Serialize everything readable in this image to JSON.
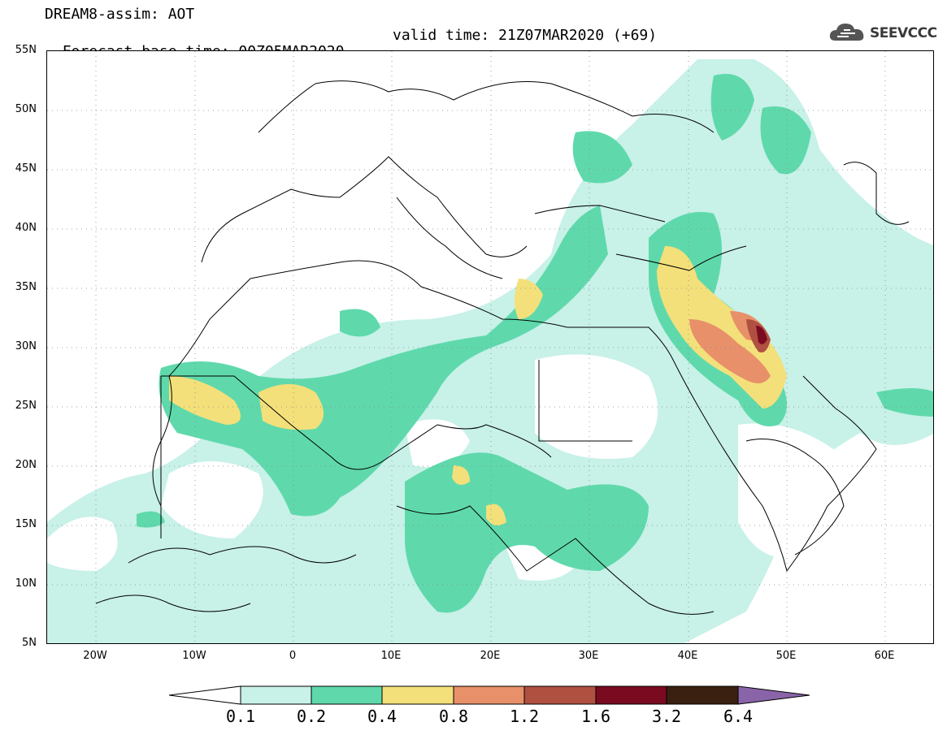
{
  "header": {
    "line1": "DREAM8-assim: AOT",
    "line2": "Forecast base time: 00Z05MAR2020",
    "valid": "valid time: 21Z07MAR2020 (+69)"
  },
  "logo": {
    "text": "SEEVCCC",
    "icon": "cloud-icon"
  },
  "map": {
    "lat_labels": [
      "55N",
      "50N",
      "45N",
      "40N",
      "35N",
      "30N",
      "25N",
      "20N",
      "15N",
      "10N",
      "5N"
    ],
    "lon_labels": [
      "20W",
      "10W",
      "0",
      "10E",
      "20E",
      "30E",
      "40E",
      "50E",
      "60E"
    ],
    "extent": {
      "lon": [
        -25,
        65
      ],
      "lat": [
        5,
        55
      ]
    }
  },
  "colorbar": {
    "labels": [
      "0.1",
      "0.2",
      "0.4",
      "0.8",
      "1.2",
      "1.6",
      "3.2",
      "6.4"
    ],
    "colors": [
      "#ffffff",
      "#c8f1e8",
      "#5fd9ac",
      "#f4e07a",
      "#e8906a",
      "#b05040",
      "#7a0a20",
      "#3a2010",
      "#8a64a8"
    ]
  }
}
